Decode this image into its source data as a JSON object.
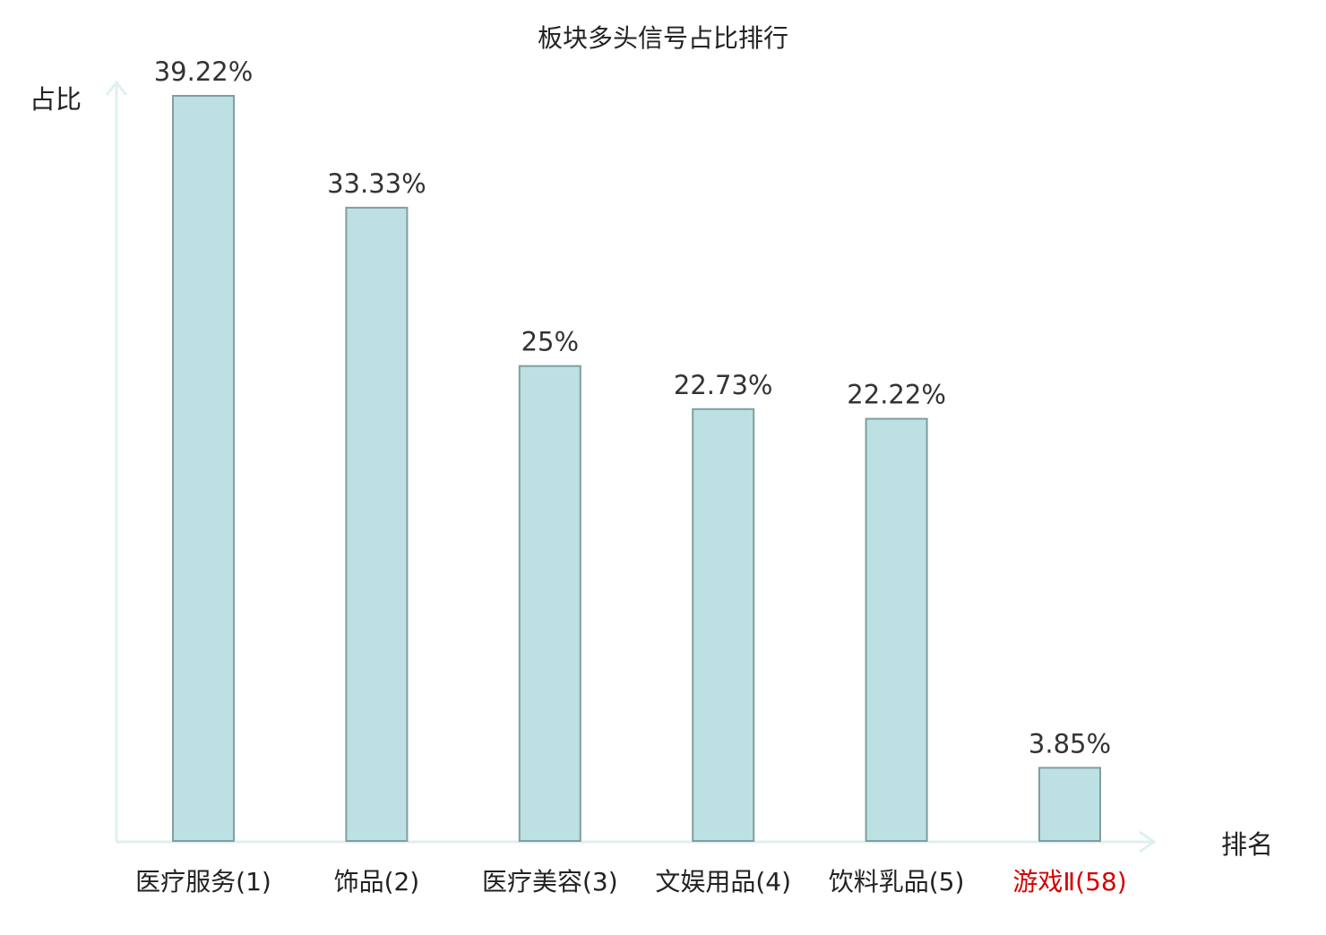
{
  "chart_data": {
    "type": "bar",
    "title": "板块多头信号占比排行",
    "ylabel": "占比",
    "xlabel": "排名",
    "categories": [
      "医疗服务(1)",
      "饰品(2)",
      "医疗美容(3)",
      "文娱用品(4)",
      "饮料乳品(5)",
      "游戏Ⅱ(58)"
    ],
    "values": [
      39.22,
      33.33,
      25,
      22.73,
      22.22,
      3.85
    ],
    "value_labels": [
      "39.22%",
      "33.33%",
      "25%",
      "22.73%",
      "22.22%",
      "3.85%"
    ],
    "highlight_index": 5,
    "ylim": [
      0,
      39.22
    ],
    "grid": false,
    "colors": {
      "bar_fill": "#bde0e3",
      "bar_stroke": "#7f9fa2",
      "axis": "#dff0ee",
      "text": "#333333",
      "highlight_text": "#d40000"
    }
  }
}
